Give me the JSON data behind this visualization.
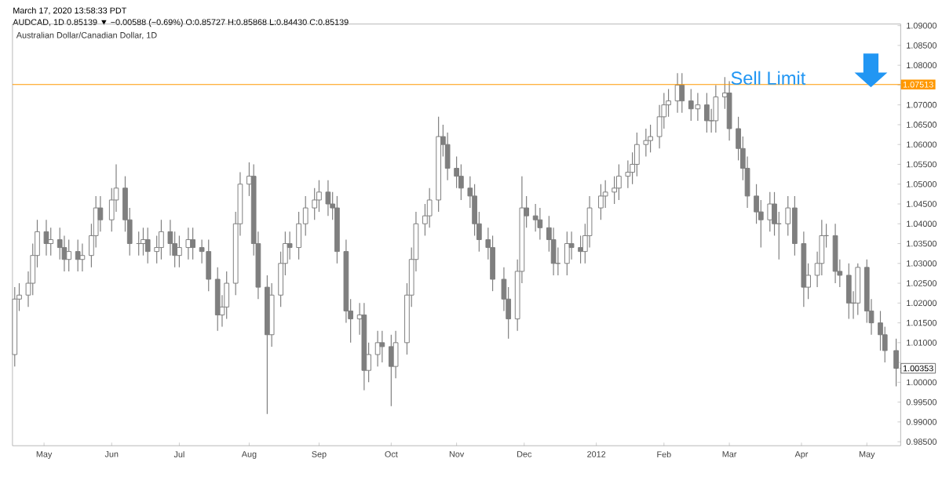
{
  "chart_data": {
    "type": "candlestick",
    "title": "Australian Dollar/Canadian Dollar, 1D",
    "annotations": [
      "March 17, 2020 13:58:33 PDT",
      "AUDCAD, 1D  0.85139 ▼ −0.00588 (−0.69%)  O:0.85727 H:0.85868 L:0.84430 C:0.85139",
      {
        "text": "1.07513",
        "x": "2012-05-16",
        "y": 1.07513
      },
      {
        "text": "1.00353",
        "x": "2012-05-14",
        "y": 1.00353
      }
    ],
    "color": "#7f7f7f",
    "x": [
      "2011-04-19",
      "2011-04-21",
      "2011-04-25",
      "2011-04-27",
      "2011-04-29",
      "2011-05-03",
      "2011-05-05",
      "2011-05-09",
      "2011-05-11",
      "2011-05-13",
      "2011-05-17",
      "2011-05-19",
      "2011-05-23",
      "2011-05-25",
      "2011-05-27",
      "2011-06-01",
      "2011-06-03",
      "2011-06-07",
      "2011-06-09",
      "2011-06-13",
      "2011-06-15",
      "2011-06-17",
      "2011-06-21",
      "2011-06-23",
      "2011-06-27",
      "2011-06-29",
      "2011-07-01",
      "2011-07-05",
      "2011-07-07",
      "2011-07-11",
      "2011-07-14",
      "2011-07-18",
      "2011-07-20",
      "2011-07-22",
      "2011-07-26",
      "2011-07-28",
      "2011-08-01",
      "2011-08-03",
      "2011-08-05",
      "2011-08-09",
      "2011-08-11",
      "2011-08-15",
      "2011-08-17",
      "2011-08-19",
      "2011-08-23",
      "2011-08-26",
      "2011-08-30",
      "2011-09-01",
      "2011-09-05",
      "2011-09-07",
      "2011-09-09",
      "2011-09-13",
      "2011-09-15",
      "2011-09-19",
      "2011-09-21",
      "2011-09-23",
      "2011-09-27",
      "2011-09-29",
      "2011-10-03",
      "2011-10-05",
      "2011-10-10",
      "2011-10-12",
      "2011-10-14",
      "2011-10-18",
      "2011-10-20",
      "2011-10-24",
      "2011-10-26",
      "2011-10-28",
      "2011-11-01",
      "2011-11-03",
      "2011-11-07",
      "2011-11-09",
      "2011-11-11",
      "2011-11-15",
      "2011-11-17",
      "2011-11-22",
      "2011-11-24",
      "2011-11-28",
      "2011-11-30",
      "2011-12-02",
      "2011-12-06",
      "2011-12-08",
      "2011-12-12",
      "2011-12-14",
      "2011-12-16",
      "2011-12-20",
      "2011-12-22",
      "2011-12-26",
      "2011-12-28",
      "2011-12-30",
      "2012-01-04",
      "2012-01-06",
      "2012-01-10",
      "2012-01-12",
      "2012-01-16",
      "2012-01-18",
      "2012-01-20",
      "2012-01-24",
      "2012-01-26",
      "2012-01-30",
      "2012-02-01",
      "2012-02-03",
      "2012-02-07",
      "2012-02-09",
      "2012-02-13",
      "2012-02-16",
      "2012-02-20",
      "2012-02-22",
      "2012-02-24",
      "2012-02-28",
      "2012-03-01",
      "2012-03-05",
      "2012-03-07",
      "2012-03-09",
      "2012-03-13",
      "2012-03-15",
      "2012-03-19",
      "2012-03-21",
      "2012-03-23",
      "2012-03-27",
      "2012-03-30",
      "2012-04-03",
      "2012-04-05",
      "2012-04-09",
      "2012-04-11",
      "2012-04-13",
      "2012-04-17",
      "2012-04-19",
      "2012-04-23",
      "2012-04-25",
      "2012-04-27",
      "2012-05-01",
      "2012-05-03",
      "2012-05-07",
      "2012-05-09",
      "2012-05-14"
    ],
    "ohlc": [
      [
        1.007,
        1.024,
        1.004,
        1.021
      ],
      [
        1.021,
        1.025,
        1.018,
        1.022
      ],
      [
        1.022,
        1.028,
        1.019,
        1.025
      ],
      [
        1.025,
        1.035,
        1.022,
        1.032
      ],
      [
        1.032,
        1.041,
        1.029,
        1.038
      ],
      [
        1.038,
        1.041,
        1.032,
        1.035
      ],
      [
        1.035,
        1.039,
        1.032,
        1.036
      ],
      [
        1.036,
        1.039,
        1.031,
        1.034
      ],
      [
        1.034,
        1.037,
        1.028,
        1.031
      ],
      [
        1.031,
        1.036,
        1.028,
        1.033
      ],
      [
        1.033,
        1.036,
        1.028,
        1.031
      ],
      [
        1.031,
        1.035,
        1.028,
        1.032
      ],
      [
        1.032,
        1.04,
        1.029,
        1.037
      ],
      [
        1.037,
        1.047,
        1.034,
        1.044
      ],
      [
        1.044,
        1.047,
        1.038,
        1.041
      ],
      [
        1.041,
        1.049,
        1.038,
        1.046
      ],
      [
        1.046,
        1.055,
        1.043,
        1.049
      ],
      [
        1.049,
        1.052,
        1.038,
        1.041
      ],
      [
        1.041,
        1.044,
        1.032,
        1.035
      ],
      [
        1.035,
        1.038,
        1.032,
        1.035
      ],
      [
        1.035,
        1.039,
        1.032,
        1.036
      ],
      [
        1.036,
        1.039,
        1.03,
        1.033
      ],
      [
        1.033,
        1.037,
        1.03,
        1.034
      ],
      [
        1.034,
        1.041,
        1.031,
        1.038
      ],
      [
        1.038,
        1.041,
        1.032,
        1.035
      ],
      [
        1.035,
        1.038,
        1.029,
        1.032
      ],
      [
        1.032,
        1.037,
        1.029,
        1.034
      ],
      [
        1.034,
        1.039,
        1.031,
        1.036
      ],
      [
        1.036,
        1.039,
        1.031,
        1.034
      ],
      [
        1.034,
        1.036,
        1.03,
        1.033
      ],
      [
        1.033,
        1.036,
        1.023,
        1.026
      ],
      [
        1.026,
        1.029,
        1.013,
        1.017
      ],
      [
        1.017,
        1.022,
        1.014,
        1.019
      ],
      [
        1.019,
        1.028,
        1.016,
        1.025
      ],
      [
        1.025,
        1.043,
        1.022,
        1.04
      ],
      [
        1.04,
        1.053,
        1.037,
        1.05
      ],
      [
        1.05,
        1.0555,
        1.047,
        1.052
      ],
      [
        1.052,
        1.055,
        1.032,
        1.035
      ],
      [
        1.035,
        1.038,
        1.021,
        1.024
      ],
      [
        1.024,
        1.027,
        0.992,
        1.012
      ],
      [
        1.012,
        1.025,
        1.009,
        1.022
      ],
      [
        1.022,
        1.033,
        1.019,
        1.03
      ],
      [
        1.03,
        1.038,
        1.027,
        1.035
      ],
      [
        1.035,
        1.038,
        1.031,
        1.034
      ],
      [
        1.034,
        1.043,
        1.031,
        1.04
      ],
      [
        1.04,
        1.047,
        1.037,
        1.044
      ],
      [
        1.044,
        1.049,
        1.041,
        1.046
      ],
      [
        1.046,
        1.051,
        1.043,
        1.048
      ],
      [
        1.048,
        1.051,
        1.042,
        1.045
      ],
      [
        1.045,
        1.048,
        1.041,
        1.044
      ],
      [
        1.044,
        1.047,
        1.03,
        1.033
      ],
      [
        1.033,
        1.036,
        1.015,
        1.018
      ],
      [
        1.018,
        1.021,
        1.01,
        1.016
      ],
      [
        1.016,
        1.02,
        1.012,
        1.017
      ],
      [
        1.017,
        1.02,
        0.998,
        1.003
      ],
      [
        1.003,
        1.01,
        1.0,
        1.007
      ],
      [
        1.007,
        1.013,
        1.004,
        1.01
      ],
      [
        1.01,
        1.013,
        1.005,
        1.009
      ],
      [
        1.009,
        1.012,
        0.994,
        1.004
      ],
      [
        1.004,
        1.013,
        1.001,
        1.01
      ],
      [
        1.01,
        1.025,
        1.007,
        1.022
      ],
      [
        1.022,
        1.034,
        1.019,
        1.031
      ],
      [
        1.031,
        1.043,
        1.028,
        1.04
      ],
      [
        1.04,
        1.045,
        1.037,
        1.042
      ],
      [
        1.042,
        1.049,
        1.039,
        1.046
      ],
      [
        1.046,
        1.067,
        1.043,
        1.062
      ],
      [
        1.062,
        1.065,
        1.057,
        1.06
      ],
      [
        1.06,
        1.063,
        1.051,
        1.054
      ],
      [
        1.054,
        1.057,
        1.049,
        1.052
      ],
      [
        1.052,
        1.055,
        1.046,
        1.049
      ],
      [
        1.049,
        1.052,
        1.044,
        1.047
      ],
      [
        1.047,
        1.05,
        1.037,
        1.04
      ],
      [
        1.04,
        1.043,
        1.033,
        1.036
      ],
      [
        1.036,
        1.039,
        1.031,
        1.034
      ],
      [
        1.034,
        1.037,
        1.023,
        1.026
      ],
      [
        1.026,
        1.029,
        1.018,
        1.021
      ],
      [
        1.021,
        1.024,
        1.011,
        1.016
      ],
      [
        1.016,
        1.031,
        1.013,
        1.028
      ],
      [
        1.028,
        1.052,
        1.025,
        1.044
      ],
      [
        1.044,
        1.047,
        1.039,
        1.042
      ],
      [
        1.042,
        1.045,
        1.038,
        1.041
      ],
      [
        1.041,
        1.044,
        1.036,
        1.039
      ],
      [
        1.039,
        1.042,
        1.033,
        1.036
      ],
      [
        1.036,
        1.039,
        1.027,
        1.03
      ],
      [
        1.03,
        1.034,
        1.027,
        1.03
      ],
      [
        1.03,
        1.038,
        1.027,
        1.035
      ],
      [
        1.035,
        1.038,
        1.031,
        1.034
      ],
      [
        1.034,
        1.037,
        1.03,
        1.033
      ],
      [
        1.033,
        1.04,
        1.03,
        1.037
      ],
      [
        1.037,
        1.047,
        1.034,
        1.044
      ],
      [
        1.044,
        1.05,
        1.041,
        1.047
      ],
      [
        1.047,
        1.051,
        1.044,
        1.048
      ],
      [
        1.048,
        1.052,
        1.045,
        1.049
      ],
      [
        1.049,
        1.055,
        1.046,
        1.052
      ],
      [
        1.052,
        1.056,
        1.049,
        1.053
      ],
      [
        1.053,
        1.058,
        1.05,
        1.055
      ],
      [
        1.055,
        1.063,
        1.052,
        1.06
      ],
      [
        1.06,
        1.064,
        1.057,
        1.061
      ],
      [
        1.061,
        1.065,
        1.058,
        1.062
      ],
      [
        1.062,
        1.07,
        1.059,
        1.067
      ],
      [
        1.067,
        1.073,
        1.064,
        1.07
      ],
      [
        1.07,
        1.074,
        1.067,
        1.071
      ],
      [
        1.071,
        1.078,
        1.068,
        1.075
      ],
      [
        1.075,
        1.078,
        1.068,
        1.071
      ],
      [
        1.071,
        1.074,
        1.066,
        1.069
      ],
      [
        1.069,
        1.073,
        1.066,
        1.07
      ],
      [
        1.07,
        1.073,
        1.063,
        1.066
      ],
      [
        1.066,
        1.069,
        1.063,
        1.066
      ],
      [
        1.066,
        1.075,
        1.063,
        1.072
      ],
      [
        1.072,
        1.077,
        1.069,
        1.073
      ],
      [
        1.073,
        1.076,
        1.061,
        1.064
      ],
      [
        1.064,
        1.067,
        1.056,
        1.059
      ],
      [
        1.059,
        1.062,
        1.051,
        1.054
      ],
      [
        1.054,
        1.057,
        1.044,
        1.047
      ],
      [
        1.047,
        1.05,
        1.04,
        1.043
      ],
      [
        1.043,
        1.046,
        1.034,
        1.041
      ],
      [
        1.041,
        1.048,
        1.038,
        1.045
      ],
      [
        1.045,
        1.048,
        1.037,
        1.04
      ],
      [
        1.04,
        1.043,
        1.031,
        1.04
      ],
      [
        1.04,
        1.047,
        1.037,
        1.044
      ],
      [
        1.044,
        1.047,
        1.032,
        1.035
      ],
      [
        1.035,
        1.038,
        1.019,
        1.024
      ],
      [
        1.024,
        1.03,
        1.021,
        1.027
      ],
      [
        1.027,
        1.033,
        1.024,
        1.03
      ],
      [
        1.03,
        1.041,
        1.027,
        1.037
      ],
      [
        1.037,
        1.04,
        1.034,
        1.037
      ],
      [
        1.037,
        1.04,
        1.025,
        1.028
      ],
      [
        1.028,
        1.031,
        1.024,
        1.027
      ],
      [
        1.027,
        1.03,
        1.016,
        1.02
      ],
      [
        1.02,
        1.023,
        1.016,
        1.02
      ],
      [
        1.02,
        1.03,
        1.017,
        1.029
      ],
      [
        1.029,
        1.031,
        1.015,
        1.018
      ],
      [
        1.018,
        1.021,
        1.012,
        1.015
      ],
      [
        1.015,
        1.018,
        1.008,
        1.012
      ],
      [
        1.012,
        1.014,
        1.005,
        1.008
      ],
      [
        1.008,
        1.011,
        0.999,
        1.00353
      ]
    ],
    "xlim": [
      "2011-04-18",
      "2012-05-16"
    ],
    "xticks": [
      {
        "value": "2011-05-02",
        "label": "May"
      },
      {
        "value": "2011-06-01",
        "label": "Jun"
      },
      {
        "value": "2011-07-01",
        "label": "Jul"
      },
      {
        "value": "2011-08-01",
        "label": "Aug"
      },
      {
        "value": "2011-09-01",
        "label": "Sep"
      },
      {
        "value": "2011-10-03",
        "label": "Oct"
      },
      {
        "value": "2011-11-01",
        "label": "Nov"
      },
      {
        "value": "2011-12-01",
        "label": "Dec"
      },
      {
        "value": "2012-01-02",
        "label": "2012"
      },
      {
        "value": "2012-02-01",
        "label": "Feb"
      },
      {
        "value": "2012-03-01",
        "label": "Mar"
      },
      {
        "value": "2012-04-02",
        "label": "Apr"
      },
      {
        "value": "2012-05-01",
        "label": "May"
      }
    ],
    "ylim": [
      0.984,
      1.0904
    ],
    "yticks": [
      {
        "value": 0.985,
        "label": "0.98500"
      },
      {
        "value": 0.99,
        "label": "0.99000"
      },
      {
        "value": 0.995,
        "label": "0.99500"
      },
      {
        "value": 1.0,
        "label": "1.00000"
      },
      {
        "value": 1.005,
        "label": null
      },
      {
        "value": 1.01,
        "label": "1.01000"
      },
      {
        "value": 1.015,
        "label": "1.01500"
      },
      {
        "value": 1.02,
        "label": "1.02000"
      },
      {
        "value": 1.025,
        "label": "1.02500"
      },
      {
        "value": 1.03,
        "label": "1.03000"
      },
      {
        "value": 1.035,
        "label": "1.03500"
      },
      {
        "value": 1.04,
        "label": "1.04000"
      },
      {
        "value": 1.045,
        "label": "1.04500"
      },
      {
        "value": 1.05,
        "label": "1.05000"
      },
      {
        "value": 1.055,
        "label": "1.05500"
      },
      {
        "value": 1.06,
        "label": "1.06000"
      },
      {
        "value": 1.065,
        "label": "1.06500"
      },
      {
        "value": 1.07,
        "label": "1.07000"
      },
      {
        "value": 1.075,
        "label": null
      },
      {
        "value": 1.08,
        "label": "1.08000"
      },
      {
        "value": 1.085,
        "label": "1.08500"
      },
      {
        "value": 1.09,
        "label": "1.09000"
      }
    ],
    "ref_lines": [
      {
        "axis": "y",
        "value": 1.07513,
        "label": "Sell Limit",
        "color": "#ff9800"
      }
    ]
  }
}
